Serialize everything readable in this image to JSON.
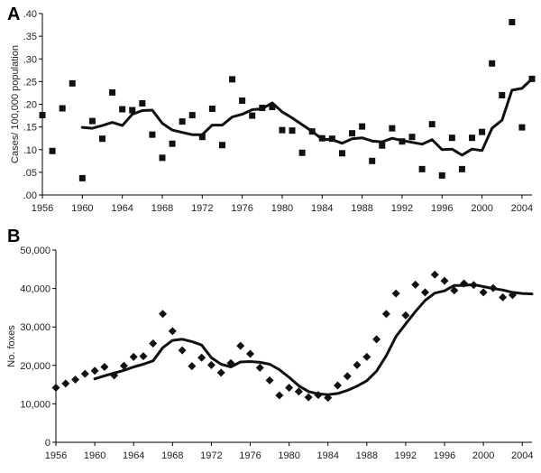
{
  "chart_data": [
    {
      "panel": "A",
      "type": "scatter",
      "ylabel": "Cases/ 100,000 population",
      "xlabel": "",
      "xlim": [
        1956,
        2005
      ],
      "ylim": [
        0,
        0.4
      ],
      "x_ticks": [
        1956,
        1960,
        1964,
        1968,
        1972,
        1976,
        1980,
        1984,
        1988,
        1992,
        1996,
        2000,
        2004
      ],
      "x_tick_labels": [
        "1956",
        "1960",
        "1964",
        "1968",
        "1972",
        "1976",
        "1980",
        "1984",
        "1988",
        "1992",
        "1996",
        "2000",
        "2004"
      ],
      "y_ticks": [
        0,
        0.05,
        0.1,
        0.15,
        0.2,
        0.25,
        0.3,
        0.35,
        0.4
      ],
      "y_tick_labels": [
        ".00",
        ".05",
        ".10",
        ".15",
        ".20",
        ".25",
        ".30",
        ".35",
        ".40"
      ],
      "grid": false,
      "series": [
        {
          "kind": "points",
          "marker": "square",
          "x": [
            1956,
            1957,
            1958,
            1959,
            1960,
            1961,
            1962,
            1963,
            1964,
            1965,
            1966,
            1967,
            1968,
            1969,
            1970,
            1971,
            1972,
            1973,
            1974,
            1975,
            1976,
            1977,
            1978,
            1979,
            1980,
            1981,
            1982,
            1983,
            1984,
            1985,
            1986,
            1987,
            1988,
            1989,
            1990,
            1991,
            1992,
            1993,
            1994,
            1995,
            1996,
            1997,
            1998,
            1999,
            2000,
            2001,
            2002,
            2003,
            2004,
            2005
          ],
          "y": [
            0.176,
            0.097,
            0.191,
            0.246,
            0.037,
            0.163,
            0.124,
            0.226,
            0.189,
            0.187,
            0.202,
            0.133,
            0.082,
            0.113,
            0.162,
            0.176,
            0.128,
            0.19,
            0.11,
            0.255,
            0.208,
            0.175,
            0.192,
            0.194,
            0.143,
            0.142,
            0.093,
            0.14,
            0.125,
            0.124,
            0.092,
            0.136,
            0.151,
            0.075,
            0.109,
            0.147,
            0.118,
            0.128,
            0.057,
            0.156,
            0.043,
            0.126,
            0.057,
            0.126,
            0.139,
            0.29,
            0.22,
            0.381,
            0.149,
            0.256
          ]
        },
        {
          "kind": "line",
          "x": [
            1960,
            1961,
            1962,
            1963,
            1964,
            1965,
            1966,
            1967,
            1968,
            1969,
            1970,
            1971,
            1972,
            1973,
            1974,
            1975,
            1976,
            1977,
            1978,
            1979,
            1980,
            1981,
            1982,
            1983,
            1984,
            1985,
            1986,
            1987,
            1988,
            1989,
            1990,
            1991,
            1992,
            1993,
            1994,
            1995,
            1996,
            1997,
            1998,
            1999,
            2000,
            2001,
            2002,
            2003,
            2004,
            2005
          ],
          "y": [
            0.149,
            0.147,
            0.153,
            0.16,
            0.153,
            0.178,
            0.186,
            0.187,
            0.158,
            0.143,
            0.138,
            0.133,
            0.133,
            0.154,
            0.154,
            0.172,
            0.178,
            0.188,
            0.19,
            0.203,
            0.183,
            0.17,
            0.155,
            0.14,
            0.123,
            0.122,
            0.114,
            0.124,
            0.126,
            0.119,
            0.117,
            0.125,
            0.12,
            0.116,
            0.112,
            0.122,
            0.1,
            0.101,
            0.088,
            0.101,
            0.098,
            0.147,
            0.165,
            0.231,
            0.235,
            0.256
          ]
        }
      ]
    },
    {
      "panel": "B",
      "type": "scatter",
      "ylabel": "No. foxes",
      "xlabel": "",
      "xlim": [
        1956,
        2005
      ],
      "ylim": [
        0,
        50000
      ],
      "x_ticks": [
        1956,
        1960,
        1964,
        1968,
        1972,
        1976,
        1980,
        1984,
        1988,
        1992,
        1996,
        2000,
        2004
      ],
      "x_tick_labels": [
        "1956",
        "1960",
        "1964",
        "1968",
        "1972",
        "1976",
        "1980",
        "1984",
        "1988",
        "1992",
        "1996",
        "2000",
        "2004"
      ],
      "y_ticks": [
        0,
        10000,
        20000,
        30000,
        40000,
        50000
      ],
      "y_tick_labels": [
        "0",
        "10,000",
        "20,000",
        "30,000",
        "40,000",
        "50,000"
      ],
      "grid": false,
      "series": [
        {
          "kind": "points",
          "marker": "diamond",
          "x": [
            1956,
            1957,
            1958,
            1959,
            1960,
            1961,
            1962,
            1963,
            1964,
            1965,
            1966,
            1967,
            1968,
            1969,
            1970,
            1971,
            1972,
            1973,
            1974,
            1975,
            1976,
            1977,
            1978,
            1979,
            1980,
            1981,
            1982,
            1983,
            1984,
            1985,
            1986,
            1987,
            1988,
            1989,
            1990,
            1991,
            1992,
            1993,
            1994,
            1995,
            1996,
            1997,
            1998,
            1999,
            2000,
            2001,
            2002,
            2003
          ],
          "y": [
            14200,
            15300,
            16300,
            17800,
            18600,
            19600,
            17400,
            19900,
            22200,
            22400,
            25700,
            33400,
            28900,
            23900,
            19800,
            22000,
            20100,
            18100,
            20600,
            25100,
            23000,
            19400,
            16100,
            12200,
            14200,
            13200,
            11700,
            12300,
            11600,
            14800,
            17200,
            20100,
            22200,
            26800,
            33400,
            38700,
            33000,
            41000,
            39000,
            43600,
            42000,
            39500,
            41300,
            40900,
            39000,
            40100,
            37700,
            38300
          ]
        },
        {
          "kind": "line",
          "x": [
            1960,
            1961,
            1962,
            1963,
            1964,
            1965,
            1966,
            1967,
            1968,
            1969,
            1970,
            1971,
            1972,
            1973,
            1974,
            1975,
            1976,
            1977,
            1978,
            1979,
            1980,
            1981,
            1982,
            1983,
            1984,
            1985,
            1986,
            1987,
            1988,
            1989,
            1990,
            1991,
            1992,
            1993,
            1994,
            1995,
            1996,
            1997,
            1998,
            1999,
            2000,
            2001,
            2002,
            2003,
            2004,
            2005
          ],
          "y": [
            16500,
            17300,
            18000,
            18700,
            19600,
            20300,
            21200,
            24600,
            26500,
            26800,
            26200,
            25300,
            22000,
            20300,
            19600,
            20900,
            21000,
            20800,
            20300,
            18900,
            16900,
            14700,
            13200,
            12600,
            12400,
            12700,
            13500,
            14600,
            16000,
            18500,
            22500,
            27500,
            30800,
            34000,
            36900,
            38800,
            39400,
            40800,
            40800,
            41000,
            40500,
            40000,
            39600,
            39000,
            38700,
            38600
          ]
        }
      ]
    }
  ]
}
